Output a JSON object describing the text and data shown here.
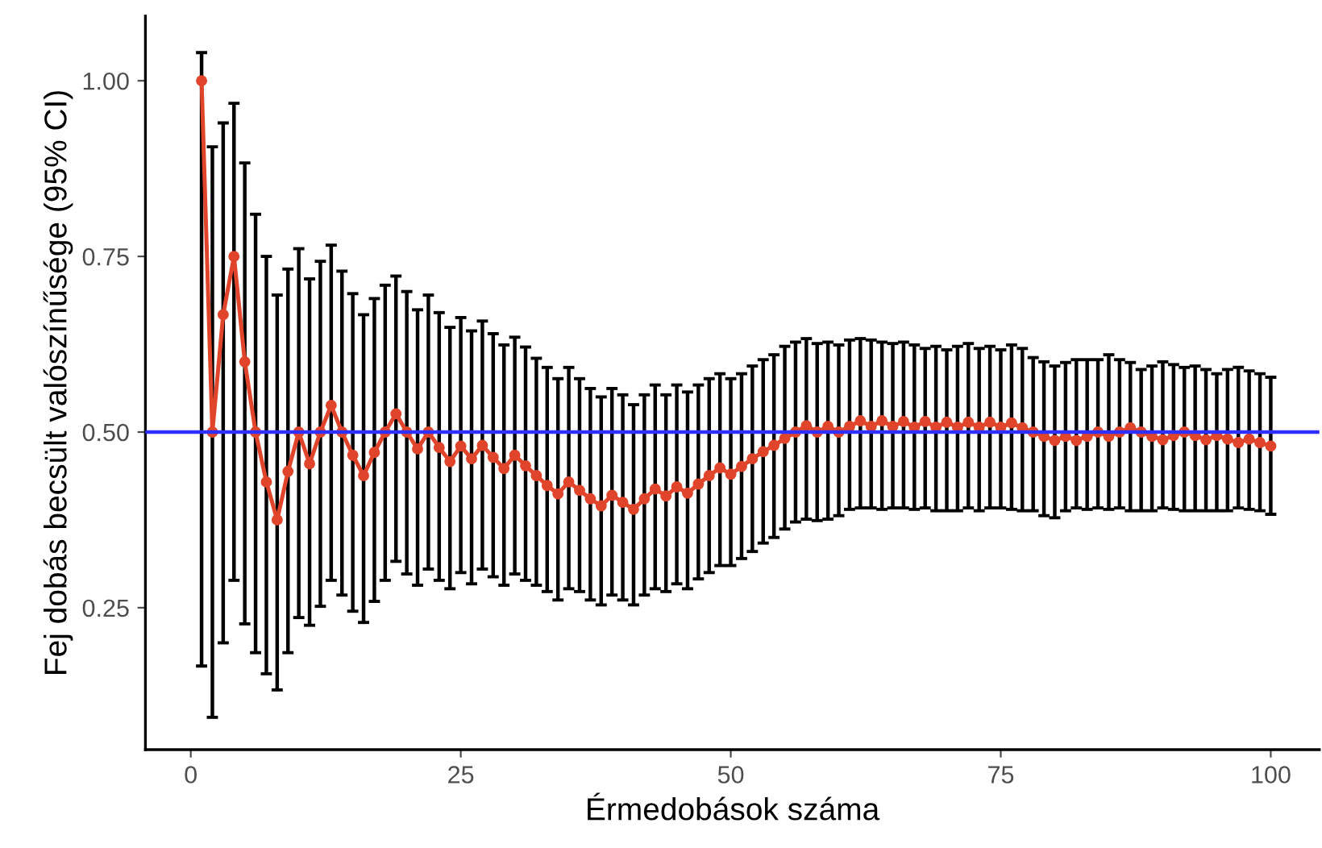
{
  "chart_data": {
    "type": "line",
    "xlabel": "Érmedobások száma",
    "ylabel": "Fej dobás becsült valószínűsége (95% CI)",
    "x": [
      1,
      2,
      3,
      4,
      5,
      6,
      7,
      8,
      9,
      10,
      11,
      12,
      13,
      14,
      15,
      16,
      17,
      18,
      19,
      20,
      21,
      22,
      23,
      24,
      25,
      26,
      27,
      28,
      29,
      30,
      31,
      32,
      33,
      34,
      35,
      36,
      37,
      38,
      39,
      40,
      41,
      42,
      43,
      44,
      45,
      46,
      47,
      48,
      49,
      50,
      51,
      52,
      53,
      54,
      55,
      56,
      57,
      58,
      59,
      60,
      61,
      62,
      63,
      64,
      65,
      66,
      67,
      68,
      69,
      70,
      71,
      72,
      73,
      74,
      75,
      76,
      77,
      78,
      79,
      80,
      81,
      82,
      83,
      84,
      85,
      86,
      87,
      88,
      89,
      90,
      91,
      92,
      93,
      94,
      95,
      96,
      97,
      98,
      99,
      100
    ],
    "series": [
      {
        "color": "#e0452b",
        "values": [
          1.0,
          0.5,
          0.667,
          0.75,
          0.6,
          0.5,
          0.429,
          0.375,
          0.444,
          0.5,
          0.455,
          0.5,
          0.538,
          0.5,
          0.467,
          0.438,
          0.471,
          0.5,
          0.526,
          0.5,
          0.476,
          0.5,
          0.478,
          0.458,
          0.48,
          0.462,
          0.481,
          0.464,
          0.448,
          0.467,
          0.452,
          0.438,
          0.424,
          0.412,
          0.429,
          0.417,
          0.405,
          0.395,
          0.41,
          0.4,
          0.39,
          0.405,
          0.419,
          0.409,
          0.422,
          0.413,
          0.426,
          0.438,
          0.449,
          0.44,
          0.451,
          0.462,
          0.472,
          0.481,
          0.491,
          0.5,
          0.509,
          0.5,
          0.508,
          0.5,
          0.508,
          0.516,
          0.508,
          0.516,
          0.508,
          0.515,
          0.507,
          0.515,
          0.507,
          0.514,
          0.507,
          0.514,
          0.507,
          0.514,
          0.507,
          0.513,
          0.506,
          0.5,
          0.494,
          0.488,
          0.494,
          0.488,
          0.494,
          0.5,
          0.494,
          0.5,
          0.506,
          0.5,
          0.494,
          0.489,
          0.495,
          0.5,
          0.495,
          0.489,
          0.495,
          0.49,
          0.485,
          0.49,
          0.485,
          0.48
        ],
        "errors": [
          [
            0.167,
            1.04
          ],
          [
            0.094,
            0.906
          ],
          [
            0.2,
            0.94
          ],
          [
            0.289,
            0.968
          ],
          [
            0.227,
            0.883
          ],
          [
            0.186,
            0.81
          ],
          [
            0.156,
            0.75
          ],
          [
            0.133,
            0.695
          ],
          [
            0.186,
            0.732
          ],
          [
            0.236,
            0.761
          ],
          [
            0.225,
            0.718
          ],
          [
            0.252,
            0.743
          ],
          [
            0.289,
            0.766
          ],
          [
            0.268,
            0.729
          ],
          [
            0.245,
            0.697
          ],
          [
            0.229,
            0.667
          ],
          [
            0.259,
            0.69
          ],
          [
            0.289,
            0.709
          ],
          [
            0.316,
            0.722
          ],
          [
            0.298,
            0.7
          ],
          [
            0.282,
            0.674
          ],
          [
            0.305,
            0.695
          ],
          [
            0.289,
            0.67
          ],
          [
            0.277,
            0.649
          ],
          [
            0.3,
            0.663
          ],
          [
            0.284,
            0.644
          ],
          [
            0.305,
            0.658
          ],
          [
            0.294,
            0.64
          ],
          [
            0.282,
            0.624
          ],
          [
            0.298,
            0.635
          ],
          [
            0.289,
            0.621
          ],
          [
            0.282,
            0.605
          ],
          [
            0.273,
            0.592
          ],
          [
            0.261,
            0.576
          ],
          [
            0.277,
            0.592
          ],
          [
            0.273,
            0.576
          ],
          [
            0.261,
            0.562
          ],
          [
            0.254,
            0.55
          ],
          [
            0.268,
            0.562
          ],
          [
            0.261,
            0.553
          ],
          [
            0.254,
            0.539
          ],
          [
            0.268,
            0.553
          ],
          [
            0.277,
            0.567
          ],
          [
            0.273,
            0.553
          ],
          [
            0.284,
            0.567
          ],
          [
            0.277,
            0.557
          ],
          [
            0.291,
            0.567
          ],
          [
            0.3,
            0.576
          ],
          [
            0.31,
            0.583
          ],
          [
            0.31,
            0.576
          ],
          [
            0.32,
            0.583
          ],
          [
            0.33,
            0.594
          ],
          [
            0.342,
            0.603
          ],
          [
            0.35,
            0.61
          ],
          [
            0.362,
            0.622
          ],
          [
            0.372,
            0.628
          ],
          [
            0.376,
            0.633
          ],
          [
            0.374,
            0.626
          ],
          [
            0.376,
            0.628
          ],
          [
            0.381,
            0.624
          ],
          [
            0.39,
            0.631
          ],
          [
            0.392,
            0.633
          ],
          [
            0.392,
            0.631
          ],
          [
            0.39,
            0.628
          ],
          [
            0.392,
            0.626
          ],
          [
            0.392,
            0.628
          ],
          [
            0.39,
            0.624
          ],
          [
            0.392,
            0.619
          ],
          [
            0.388,
            0.622
          ],
          [
            0.388,
            0.617
          ],
          [
            0.388,
            0.622
          ],
          [
            0.392,
            0.626
          ],
          [
            0.388,
            0.619
          ],
          [
            0.392,
            0.622
          ],
          [
            0.392,
            0.617
          ],
          [
            0.39,
            0.624
          ],
          [
            0.388,
            0.619
          ],
          [
            0.388,
            0.606
          ],
          [
            0.381,
            0.6
          ],
          [
            0.378,
            0.594
          ],
          [
            0.388,
            0.599
          ],
          [
            0.392,
            0.603
          ],
          [
            0.39,
            0.603
          ],
          [
            0.392,
            0.603
          ],
          [
            0.39,
            0.61
          ],
          [
            0.392,
            0.603
          ],
          [
            0.388,
            0.599
          ],
          [
            0.388,
            0.589
          ],
          [
            0.388,
            0.594
          ],
          [
            0.392,
            0.6
          ],
          [
            0.39,
            0.596
          ],
          [
            0.388,
            0.592
          ],
          [
            0.388,
            0.594
          ],
          [
            0.388,
            0.589
          ],
          [
            0.388,
            0.583
          ],
          [
            0.388,
            0.589
          ],
          [
            0.392,
            0.592
          ],
          [
            0.39,
            0.587
          ],
          [
            0.388,
            0.583
          ],
          [
            0.383,
            0.578
          ]
        ]
      }
    ],
    "marker": "circle",
    "line_style": "solid",
    "grid": false,
    "legend": false,
    "xlim": [
      -4.2,
      104.5
    ],
    "xticks": [
      0,
      25,
      50,
      75,
      100
    ],
    "ylim": [
      0.048,
      1.092
    ],
    "yticks": [
      {
        "value": 0.25,
        "label": "0.25"
      },
      {
        "value": 0.5,
        "label": "0.50"
      },
      {
        "value": 0.75,
        "label": "0.75"
      },
      {
        "value": 1.0,
        "label": "1.00"
      }
    ],
    "ref_lines": [
      {
        "axis": "y",
        "value": 0.5,
        "color": "#2f2fff",
        "line_style": "solid"
      }
    ]
  }
}
